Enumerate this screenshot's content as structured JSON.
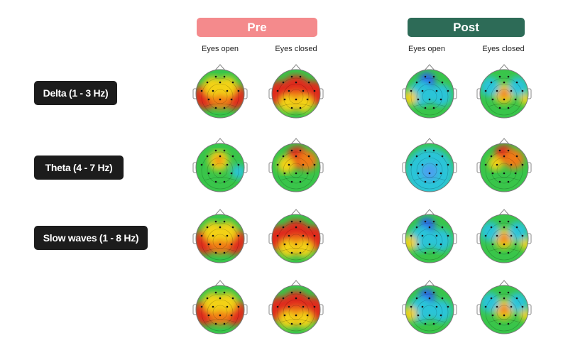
{
  "groups": [
    {
      "label": "Pre",
      "color": "#f48a8c"
    },
    {
      "label": "Post",
      "color": "#2d6b57"
    }
  ],
  "conditions": [
    "Eyes open",
    "Eyes closed"
  ],
  "bands": [
    {
      "label": "Delta (1 - 3 Hz)"
    },
    {
      "label": "Theta (4 - 7 Hz)"
    },
    {
      "label": "Slow waves (1 - 8 Hz)"
    }
  ]
}
